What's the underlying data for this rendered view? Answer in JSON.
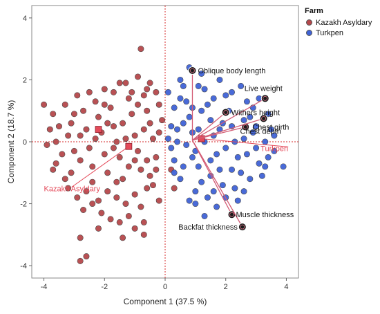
{
  "chart_data": {
    "type": "scatter",
    "title": "",
    "xlabel": "Component 1  (37.5 %)",
    "ylabel": "Component 2  (18.7 %)",
    "xlim": [
      -4.4,
      4.4
    ],
    "ylim": [
      -4.4,
      4.4
    ],
    "xticks": [
      -4,
      -2,
      0,
      2,
      4
    ],
    "yticks": [
      -4,
      -2,
      0,
      2,
      4
    ],
    "xtick_labels": [
      "-4",
      "-2",
      "0",
      "2",
      "4"
    ],
    "ytick_labels": [
      "-4",
      "-2",
      "0",
      "2",
      "4"
    ],
    "grid": false,
    "reference_lines": {
      "x": 0,
      "y": 0,
      "color": "#d42a2a",
      "style": "dotted"
    },
    "legend": {
      "title": "Farm",
      "placement": "right",
      "entries": [
        {
          "name": "Kazakh Asyldary",
          "color": "#b5484b"
        },
        {
          "name": "Turkpen",
          "color": "#3f62d6"
        }
      ]
    },
    "series": [
      {
        "name": "Kazakh Asyldary",
        "color": "#b5484b",
        "points": [
          [
            -4.0,
            1.2
          ],
          [
            -3.8,
            0.4
          ],
          [
            -3.7,
            0.9
          ],
          [
            -3.6,
            0.0
          ],
          [
            -3.5,
            0.5
          ],
          [
            -3.9,
            -0.1
          ],
          [
            -3.6,
            -0.7
          ],
          [
            -3.7,
            -0.9
          ],
          [
            -3.3,
            1.2
          ],
          [
            -3.1,
            0.6
          ],
          [
            -3.2,
            0.2
          ],
          [
            -3.0,
            -0.3
          ],
          [
            -2.8,
            -0.6
          ],
          [
            -3.1,
            -1.0
          ],
          [
            -2.9,
            1.5
          ],
          [
            -2.7,
            1.0
          ],
          [
            -2.6,
            0.4
          ],
          [
            -2.5,
            -0.2
          ],
          [
            -2.4,
            -0.8
          ],
          [
            -2.3,
            1.3
          ],
          [
            -2.2,
            0.8
          ],
          [
            -2.1,
            0.3
          ],
          [
            -2.0,
            -0.4
          ],
          [
            -1.9,
            -1.0
          ],
          [
            -2.0,
            1.7
          ],
          [
            -1.8,
            1.1
          ],
          [
            -1.7,
            0.5
          ],
          [
            -1.6,
            0.0
          ],
          [
            -1.5,
            -0.5
          ],
          [
            -1.4,
            -1.2
          ],
          [
            -1.3,
            1.9
          ],
          [
            -1.2,
            1.4
          ],
          [
            -1.1,
            0.9
          ],
          [
            -1.0,
            0.2
          ],
          [
            -0.9,
            -0.3
          ],
          [
            -0.8,
            -0.9
          ],
          [
            -1.7,
            1.6
          ],
          [
            -1.5,
            1.9
          ],
          [
            -0.9,
            2.1
          ],
          [
            -0.7,
            1.5
          ],
          [
            -0.6,
            1.0
          ],
          [
            -0.5,
            0.6
          ],
          [
            -0.4,
            0.1
          ],
          [
            -0.3,
            -0.5
          ],
          [
            -0.5,
            -1.1
          ],
          [
            -0.2,
            1.2
          ],
          [
            -0.1,
            0.7
          ],
          [
            -0.2,
            0.3
          ],
          [
            -0.6,
            1.7
          ],
          [
            -0.3,
            1.6
          ],
          [
            -2.4,
            -1.3
          ],
          [
            -2.6,
            -1.6
          ],
          [
            -2.2,
            -1.9
          ],
          [
            -1.9,
            -1.6
          ],
          [
            -1.6,
            -1.8
          ],
          [
            -1.3,
            -2.0
          ],
          [
            -1.0,
            -1.7
          ],
          [
            -0.8,
            -2.1
          ],
          [
            -0.6,
            -1.5
          ],
          [
            -0.7,
            -2.6
          ],
          [
            -1.2,
            -2.4
          ],
          [
            -1.5,
            -2.6
          ],
          [
            -1.8,
            -2.5
          ],
          [
            -2.1,
            -2.3
          ],
          [
            -2.4,
            -2.0
          ],
          [
            -2.7,
            -2.2
          ],
          [
            -2.9,
            -1.8
          ],
          [
            -3.2,
            -1.5
          ],
          [
            -1.0,
            -2.8
          ],
          [
            -0.7,
            -3.0
          ],
          [
            -1.4,
            -3.1
          ],
          [
            -2.2,
            -2.8
          ],
          [
            -2.8,
            -3.1
          ],
          [
            -2.6,
            -3.7
          ],
          [
            -2.8,
            -3.85
          ],
          [
            -0.8,
            3.0
          ],
          [
            -1.7,
            -0.2
          ],
          [
            -1.3,
            0.1
          ],
          [
            -1.0,
            -0.6
          ],
          [
            -0.7,
            0.4
          ],
          [
            -2.3,
            0.1
          ],
          [
            -1.9,
            0.6
          ],
          [
            -3.4,
            -0.4
          ],
          [
            -2.0,
            1.2
          ],
          [
            -1.1,
            1.6
          ],
          [
            -0.3,
            -0.9
          ],
          [
            -0.4,
            -1.4
          ],
          [
            -0.2,
            -1.9
          ],
          [
            -3.0,
            0.9
          ],
          [
            -2.5,
            1.6
          ],
          [
            -1.4,
            0.6
          ],
          [
            -0.9,
            1.2
          ],
          [
            -0.5,
            1.9
          ],
          [
            -2.8,
            0.2
          ],
          [
            -3.3,
            -1.2
          ],
          [
            0.2,
            -0.9
          ],
          [
            0.3,
            -1.5
          ],
          [
            -1.6,
            -1.3
          ],
          [
            -0.6,
            -0.6
          ],
          [
            -1.2,
            -0.8
          ]
        ]
      },
      {
        "name": "Turkpen",
        "color": "#3f62d6",
        "points": [
          [
            0.1,
            1.6
          ],
          [
            0.3,
            1.1
          ],
          [
            0.2,
            0.5
          ],
          [
            0.4,
            0.0
          ],
          [
            0.3,
            -0.6
          ],
          [
            0.5,
            -1.2
          ],
          [
            0.6,
            1.8
          ],
          [
            0.7,
            1.3
          ],
          [
            0.8,
            0.8
          ],
          [
            0.9,
            0.3
          ],
          [
            1.0,
            -0.3
          ],
          [
            1.1,
            -0.8
          ],
          [
            1.2,
            -1.3
          ],
          [
            1.3,
            1.7
          ],
          [
            1.4,
            1.2
          ],
          [
            1.5,
            0.7
          ],
          [
            1.6,
            0.2
          ],
          [
            1.7,
            -0.4
          ],
          [
            1.8,
            -0.9
          ],
          [
            1.9,
            -1.4
          ],
          [
            2.0,
            1.5
          ],
          [
            2.1,
            1.0
          ],
          [
            2.2,
            0.5
          ],
          [
            2.3,
            0.0
          ],
          [
            2.4,
            -0.5
          ],
          [
            2.5,
            -1.0
          ],
          [
            2.6,
            -1.6
          ],
          [
            2.7,
            1.3
          ],
          [
            2.8,
            0.8
          ],
          [
            2.9,
            0.3
          ],
          [
            3.0,
            -0.2
          ],
          [
            3.1,
            -0.7
          ],
          [
            3.2,
            -1.1
          ],
          [
            3.4,
            0.9
          ],
          [
            3.5,
            0.4
          ],
          [
            3.6,
            -0.3
          ],
          [
            3.3,
            -0.8
          ],
          [
            3.1,
            1.4
          ],
          [
            2.5,
            1.8
          ],
          [
            1.8,
            2.0
          ],
          [
            1.2,
            2.2
          ],
          [
            0.8,
            2.4
          ],
          [
            0.5,
            2.0
          ],
          [
            1.0,
            -1.6
          ],
          [
            1.4,
            -1.8
          ],
          [
            1.7,
            -2.1
          ],
          [
            1.3,
            -2.4
          ],
          [
            1.0,
            -2.0
          ],
          [
            0.8,
            -1.9
          ],
          [
            2.0,
            -1.8
          ],
          [
            2.3,
            -1.5
          ],
          [
            1.6,
            -1.6
          ],
          [
            0.7,
            -0.1
          ],
          [
            0.6,
            0.6
          ],
          [
            1.9,
            0.6
          ],
          [
            2.6,
            0.1
          ],
          [
            3.0,
            0.5
          ],
          [
            3.9,
            -0.8
          ],
          [
            3.4,
            -0.5
          ],
          [
            2.8,
            -1.2
          ],
          [
            2.2,
            -0.9
          ],
          [
            1.5,
            -0.6
          ],
          [
            0.9,
            -0.5
          ],
          [
            0.4,
            0.4
          ],
          [
            1.1,
            0.4
          ],
          [
            1.6,
            1.4
          ],
          [
            2.2,
            1.6
          ],
          [
            2.9,
            1.1
          ],
          [
            3.3,
            0.0
          ],
          [
            0.2,
            -0.2
          ],
          [
            0.5,
            1.4
          ],
          [
            1.3,
            0.0
          ],
          [
            2.4,
            -1.9
          ],
          [
            0.1,
            0.1
          ],
          [
            0.6,
            -0.8
          ],
          [
            1.2,
            1.0
          ],
          [
            1.8,
            0.4
          ],
          [
            2.6,
            0.7
          ],
          [
            1.5,
            -1.1
          ],
          [
            2.0,
            -0.2
          ],
          [
            0.9,
            1.1
          ],
          [
            3.6,
            0.2
          ],
          [
            2.7,
            -0.4
          ],
          [
            1.1,
            1.8
          ],
          [
            0.3,
            -1.0
          ]
        ]
      }
    ],
    "group_centroids": [
      {
        "name": "Kazakh Asyldary",
        "x": -1.2,
        "y": -0.15,
        "label": "Kazakh Asyldary",
        "label_x": -4.0,
        "label_y": -1.6,
        "color": "#e44a5a"
      },
      {
        "name": "Kazakh Asyldary (mean)",
        "x": -2.2,
        "y": 0.4,
        "label": "",
        "color": "#e44a5a"
      },
      {
        "name": "Turkpen",
        "x": 1.2,
        "y": 0.1,
        "label": "Turkpen",
        "label_x": 3.15,
        "label_y": -0.3,
        "color": "#e44a5a"
      }
    ],
    "loading_vectors": [
      {
        "name": "Oblique body length",
        "x": 0.9,
        "y": 2.3,
        "label": "Oblique body length"
      },
      {
        "name": "Live weight",
        "x": 3.3,
        "y": 1.4,
        "label": "Live weight"
      },
      {
        "name": "Withers height",
        "x": 2.0,
        "y": 0.95,
        "label": "Withers height"
      },
      {
        "name": "Chest girth",
        "x": 2.65,
        "y": 0.48,
        "label": "Chest girth"
      },
      {
        "name": "Chest depth",
        "x": 3.25,
        "y": 0.75,
        "label": "Chest depth"
      },
      {
        "name": "Muscle thickness",
        "x": 2.2,
        "y": -2.35,
        "label": "Muscle thickness"
      },
      {
        "name": "Backfat thickness",
        "x": 2.55,
        "y": -2.75,
        "label": "Backfat thickness"
      }
    ],
    "vector_color": "#d35c75",
    "vector_origin": [
      0.9,
      0.05
    ]
  }
}
